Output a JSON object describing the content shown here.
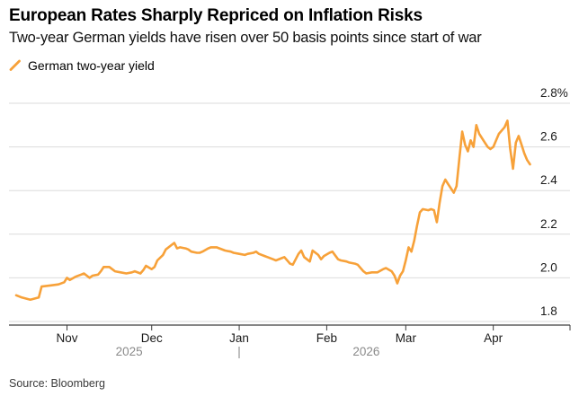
{
  "header": {
    "title": "European Rates Sharply Repriced on Inflation Risks",
    "subtitle": "Two-year German yields have risen over 50 basis points since start of war"
  },
  "legend": {
    "series_label": "German two-year yield"
  },
  "source": "Source: Bloomberg",
  "colors": {
    "line": "#F7A139",
    "grid": "#DBDBDB",
    "axis": "#3D3D3D",
    "label": "#1A1A1A",
    "muted": "#8A8A8A"
  },
  "chart_data": {
    "type": "line",
    "title": "European Rates Sharply Repriced on Inflation Risks",
    "subtitle": "Two-year German yields have risen over 50 basis points since start of war",
    "series_name": "German two-year yield",
    "unit": "percent",
    "ylim": [
      1.8,
      2.8
    ],
    "grid": true,
    "legend_position": "top-left",
    "yticks": [
      {
        "value": 2.8,
        "label": "2.8%"
      },
      {
        "value": 2.6,
        "label": "2.6"
      },
      {
        "value": 2.4,
        "label": "2.4"
      },
      {
        "value": 2.2,
        "label": "2.2"
      },
      {
        "value": 2.0,
        "label": "2.0"
      },
      {
        "value": 1.8,
        "label": "1.8"
      }
    ],
    "xticks": [
      {
        "label": "Nov",
        "date": "2025-11-01"
      },
      {
        "label": "Dec",
        "date": "2025-12-01"
      },
      {
        "label": "Jan",
        "date": "2026-01-01"
      },
      {
        "label": "Feb",
        "date": "2026-02-01"
      },
      {
        "label": "Mar",
        "date": "2026-03-01"
      },
      {
        "label": "Apr",
        "date": "2026-04-01"
      }
    ],
    "year_labels": [
      {
        "label": "2025",
        "date": "2025-11-23"
      },
      {
        "label": "2026",
        "date": "2026-02-15"
      }
    ],
    "year_divider": {
      "label": "|",
      "date": "2026-01-01"
    },
    "points": [
      [
        "2025-10-14",
        1.92
      ],
      [
        "2025-10-16",
        1.91
      ],
      [
        "2025-10-19",
        1.9
      ],
      [
        "2025-10-22",
        1.91
      ],
      [
        "2025-10-23",
        1.96
      ],
      [
        "2025-10-26",
        1.965
      ],
      [
        "2025-10-29",
        1.97
      ],
      [
        "2025-10-31",
        1.98
      ],
      [
        "2025-11-01",
        2.0
      ],
      [
        "2025-11-02",
        1.99
      ],
      [
        "2025-11-04",
        2.005
      ],
      [
        "2025-11-06",
        2.015
      ],
      [
        "2025-11-07",
        2.02
      ],
      [
        "2025-11-09",
        2.0
      ],
      [
        "2025-11-10",
        2.01
      ],
      [
        "2025-11-12",
        2.015
      ],
      [
        "2025-11-13",
        2.03
      ],
      [
        "2025-11-14",
        2.05
      ],
      [
        "2025-11-16",
        2.05
      ],
      [
        "2025-11-18",
        2.03
      ],
      [
        "2025-11-20",
        2.025
      ],
      [
        "2025-11-22",
        2.02
      ],
      [
        "2025-11-24",
        2.025
      ],
      [
        "2025-11-25",
        2.03
      ],
      [
        "2025-11-27",
        2.02
      ],
      [
        "2025-11-28",
        2.035
      ],
      [
        "2025-11-29",
        2.055
      ],
      [
        "2025-12-01",
        2.04
      ],
      [
        "2025-12-02",
        2.05
      ],
      [
        "2025-12-03",
        2.08
      ],
      [
        "2025-12-05",
        2.105
      ],
      [
        "2025-12-06",
        2.13
      ],
      [
        "2025-12-08",
        2.15
      ],
      [
        "2025-12-09",
        2.16
      ],
      [
        "2025-12-10",
        2.135
      ],
      [
        "2025-12-11",
        2.14
      ],
      [
        "2025-12-13",
        2.135
      ],
      [
        "2025-12-14",
        2.13
      ],
      [
        "2025-12-15",
        2.12
      ],
      [
        "2025-12-17",
        2.115
      ],
      [
        "2025-12-18",
        2.115
      ],
      [
        "2025-12-19",
        2.12
      ],
      [
        "2025-12-21",
        2.135
      ],
      [
        "2025-12-22",
        2.14
      ],
      [
        "2025-12-24",
        2.14
      ],
      [
        "2025-12-25",
        2.135
      ],
      [
        "2025-12-27",
        2.125
      ],
      [
        "2025-12-29",
        2.12
      ],
      [
        "2025-12-30",
        2.115
      ],
      [
        "2026-01-01",
        2.11
      ],
      [
        "2026-01-03",
        2.105
      ],
      [
        "2026-01-04",
        2.11
      ],
      [
        "2026-01-06",
        2.115
      ],
      [
        "2026-01-07",
        2.12
      ],
      [
        "2026-01-08",
        2.11
      ],
      [
        "2026-01-10",
        2.1
      ],
      [
        "2026-01-11",
        2.095
      ],
      [
        "2026-01-13",
        2.085
      ],
      [
        "2026-01-14",
        2.08
      ],
      [
        "2026-01-16",
        2.09
      ],
      [
        "2026-01-17",
        2.095
      ],
      [
        "2026-01-19",
        2.065
      ],
      [
        "2026-01-20",
        2.06
      ],
      [
        "2026-01-22",
        2.11
      ],
      [
        "2026-01-23",
        2.125
      ],
      [
        "2026-01-24",
        2.095
      ],
      [
        "2026-01-26",
        2.075
      ],
      [
        "2026-01-27",
        2.125
      ],
      [
        "2026-01-29",
        2.105
      ],
      [
        "2026-01-30",
        2.085
      ],
      [
        "2026-01-31",
        2.1
      ],
      [
        "2026-02-02",
        2.115
      ],
      [
        "2026-02-03",
        2.12
      ],
      [
        "2026-02-05",
        2.085
      ],
      [
        "2026-02-06",
        2.08
      ],
      [
        "2026-02-08",
        2.075
      ],
      [
        "2026-02-09",
        2.07
      ],
      [
        "2026-02-11",
        2.065
      ],
      [
        "2026-02-12",
        2.06
      ],
      [
        "2026-02-14",
        2.03
      ],
      [
        "2026-02-15",
        2.02
      ],
      [
        "2026-02-17",
        2.025
      ],
      [
        "2026-02-19",
        2.025
      ],
      [
        "2026-02-21",
        2.04
      ],
      [
        "2026-02-22",
        2.045
      ],
      [
        "2026-02-24",
        2.03
      ],
      [
        "2026-02-25",
        2.01
      ],
      [
        "2026-02-26",
        1.975
      ],
      [
        "2026-02-27",
        2.01
      ],
      [
        "2026-02-28",
        2.03
      ],
      [
        "2026-03-01",
        2.08
      ],
      [
        "2026-03-02",
        2.14
      ],
      [
        "2026-03-03",
        2.12
      ],
      [
        "2026-03-04",
        2.17
      ],
      [
        "2026-03-05",
        2.24
      ],
      [
        "2026-03-06",
        2.3
      ],
      [
        "2026-03-07",
        2.315
      ],
      [
        "2026-03-09",
        2.31
      ],
      [
        "2026-03-10",
        2.315
      ],
      [
        "2026-03-11",
        2.31
      ],
      [
        "2026-03-12",
        2.255
      ],
      [
        "2026-03-13",
        2.345
      ],
      [
        "2026-03-14",
        2.42
      ],
      [
        "2026-03-15",
        2.45
      ],
      [
        "2026-03-16",
        2.43
      ],
      [
        "2026-03-17",
        2.41
      ],
      [
        "2026-03-18",
        2.39
      ],
      [
        "2026-03-19",
        2.42
      ],
      [
        "2026-03-20",
        2.55
      ],
      [
        "2026-03-21",
        2.67
      ],
      [
        "2026-03-22",
        2.61
      ],
      [
        "2026-03-23",
        2.58
      ],
      [
        "2026-03-24",
        2.63
      ],
      [
        "2026-03-25",
        2.6
      ],
      [
        "2026-03-26",
        2.7
      ],
      [
        "2026-03-27",
        2.66
      ],
      [
        "2026-03-29",
        2.62
      ],
      [
        "2026-03-30",
        2.6
      ],
      [
        "2026-03-31",
        2.59
      ],
      [
        "2026-04-01",
        2.6
      ],
      [
        "2026-04-02",
        2.63
      ],
      [
        "2026-04-03",
        2.66
      ],
      [
        "2026-04-05",
        2.69
      ],
      [
        "2026-04-06",
        2.72
      ],
      [
        "2026-04-07",
        2.59
      ],
      [
        "2026-04-08",
        2.5
      ],
      [
        "2026-04-09",
        2.62
      ],
      [
        "2026-04-10",
        2.65
      ],
      [
        "2026-04-11",
        2.61
      ],
      [
        "2026-04-12",
        2.57
      ],
      [
        "2026-04-13",
        2.54
      ],
      [
        "2026-04-14",
        2.52
      ]
    ]
  }
}
